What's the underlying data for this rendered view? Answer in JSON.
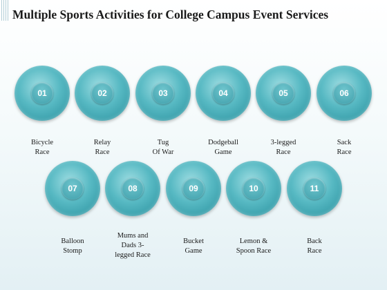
{
  "title": "Multiple Sports Activities for College Campus Event Services",
  "activities": [
    {
      "number": "01",
      "line1": "Bicycle",
      "line2": "Race",
      "line3": ""
    },
    {
      "number": "02",
      "line1": "Relay",
      "line2": "Race",
      "line3": ""
    },
    {
      "number": "03",
      "line1": "Tug",
      "line2": "Of War",
      "line3": ""
    },
    {
      "number": "04",
      "line1": "Dodgeball",
      "line2": "Game",
      "line3": ""
    },
    {
      "number": "05",
      "line1": "3-legged",
      "line2": "Race",
      "line3": ""
    },
    {
      "number": "06",
      "line1": "Sack",
      "line2": "Race",
      "line3": ""
    },
    {
      "number": "07",
      "line1": "Balloon",
      "line2": "Stomp",
      "line3": ""
    },
    {
      "number": "08",
      "line1": "Mums and",
      "line2": "Dads 3-",
      "line3": "legged Race"
    },
    {
      "number": "09",
      "line1": "Bucket",
      "line2": "Game",
      "line3": ""
    },
    {
      "number": "10",
      "line1": "Lemon &",
      "line2": "Spoon Race",
      "line3": ""
    },
    {
      "number": "11",
      "line1": "Back",
      "line2": "Race",
      "line3": ""
    }
  ],
  "colors": {
    "badge": "#4fb3bd",
    "badge_dark": "#2e8d98",
    "text": "#1a1a1a"
  }
}
